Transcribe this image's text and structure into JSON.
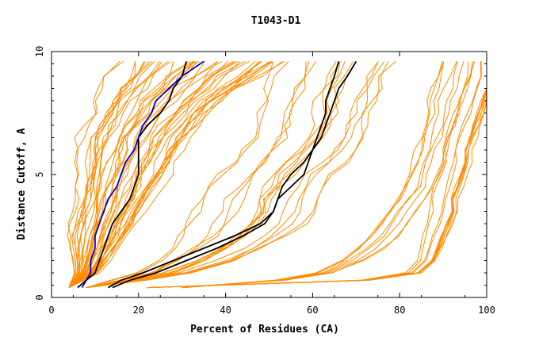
{
  "chart_data": {
    "type": "line",
    "title": "T1043-D1",
    "xlabel": "Percent of Residues (CA)",
    "ylabel": "Distance Cutoff, A",
    "xlim": [
      0,
      100
    ],
    "ylim": [
      0,
      10
    ],
    "x_ticks": [
      "0",
      "20",
      "40",
      "60",
      "80",
      "100"
    ],
    "y_ticks": [
      "0",
      "5",
      "10"
    ],
    "grid": false,
    "colors": {
      "models": "#ff8c00",
      "highlight_black": "#000000",
      "highlight_blue": "#0000cc"
    },
    "y": [
      0.4,
      0.7,
      1.0,
      1.5,
      2.0,
      2.5,
      3.0,
      3.5,
      4.0,
      4.5,
      5.0,
      5.5,
      6.0,
      6.5,
      7.0,
      7.5,
      8.0,
      8.5,
      9.0,
      9.6
    ],
    "highlighted_series": [
      {
        "color": "black",
        "x": [
          6,
          8,
          10,
          11,
          12,
          13,
          14,
          16,
          18,
          19,
          20,
          20,
          20,
          20,
          22,
          25,
          27,
          28,
          30,
          31
        ]
      },
      {
        "color": "blue",
        "x": [
          7,
          8,
          9,
          9,
          10,
          10,
          11,
          12,
          13,
          15,
          16,
          17,
          19,
          20,
          21,
          23,
          24,
          27,
          30,
          35
        ]
      },
      {
        "color": "black",
        "x": [
          13,
          16,
          21,
          28,
          35,
          42,
          48,
          51,
          52,
          53,
          55,
          58,
          60,
          61,
          62,
          63,
          63,
          64,
          65,
          66
        ]
      },
      {
        "color": "black",
        "x": [
          14,
          18,
          24,
          31,
          38,
          44,
          49,
          51,
          52,
          55,
          58,
          59,
          60,
          62,
          63,
          64,
          65,
          66,
          68,
          70
        ]
      }
    ],
    "model_groups": [
      {
        "name": "",
        "count": 42,
        "x": [
          4,
          6,
          8,
          9,
          10,
          11,
          12,
          13,
          14,
          15,
          16,
          17,
          18,
          19,
          21,
          23,
          25,
          28,
          31,
          35
        ],
        "spread": [
          0.0,
          0.1,
          0.2,
          0.3,
          0.4,
          0.5,
          0.55,
          0.6,
          0.65,
          0.7,
          0.75,
          0.8,
          0.85,
          0.9,
          0.95,
          1.0,
          1.1,
          1.2,
          1.3,
          1.45
        ],
        "scale": 14
      },
      {
        "name": "",
        "count": 16,
        "x": [
          8,
          18,
          26,
          33,
          38,
          42,
          45,
          47,
          48,
          50,
          52,
          55,
          57,
          59,
          60,
          61,
          62,
          63,
          64,
          66
        ],
        "spread": [
          0.0,
          0.3,
          0.5,
          0.7,
          0.8,
          0.9,
          1.0,
          1.0,
          1.0,
          1.0,
          1.0,
          1.0,
          1.0,
          1.0,
          1.0,
          1.0,
          1.0,
          1.0,
          1.0,
          1.0
        ],
        "scale": 14
      },
      {
        "name": "",
        "count": 8,
        "x": [
          30,
          52,
          62,
          68,
          72,
          75,
          77,
          79,
          81,
          83,
          84,
          85,
          86,
          87,
          88,
          89,
          89,
          90,
          91,
          92
        ],
        "spread": [
          0.0,
          0.3,
          0.5,
          0.7,
          0.8,
          0.9,
          1.0,
          1.0,
          1.0,
          1.0,
          1.0,
          1.0,
          1.0,
          1.0,
          1.0,
          1.0,
          1.0,
          1.0,
          1.0,
          1.0
        ],
        "scale": 6
      },
      {
        "name": "",
        "count": 12,
        "x": [
          22,
          72,
          83,
          86,
          87,
          88,
          89,
          90,
          90,
          91,
          92,
          93,
          93,
          94,
          95,
          96,
          97,
          98,
          99,
          99
        ],
        "spread": [
          0.0,
          0.3,
          0.5,
          0.6,
          0.7,
          0.8,
          0.9,
          1.0,
          1.0,
          1.0,
          1.0,
          1.0,
          1.0,
          1.0,
          1.0,
          1.0,
          1.0,
          1.0,
          1.0,
          1.0
        ],
        "scale": 4
      }
    ]
  }
}
